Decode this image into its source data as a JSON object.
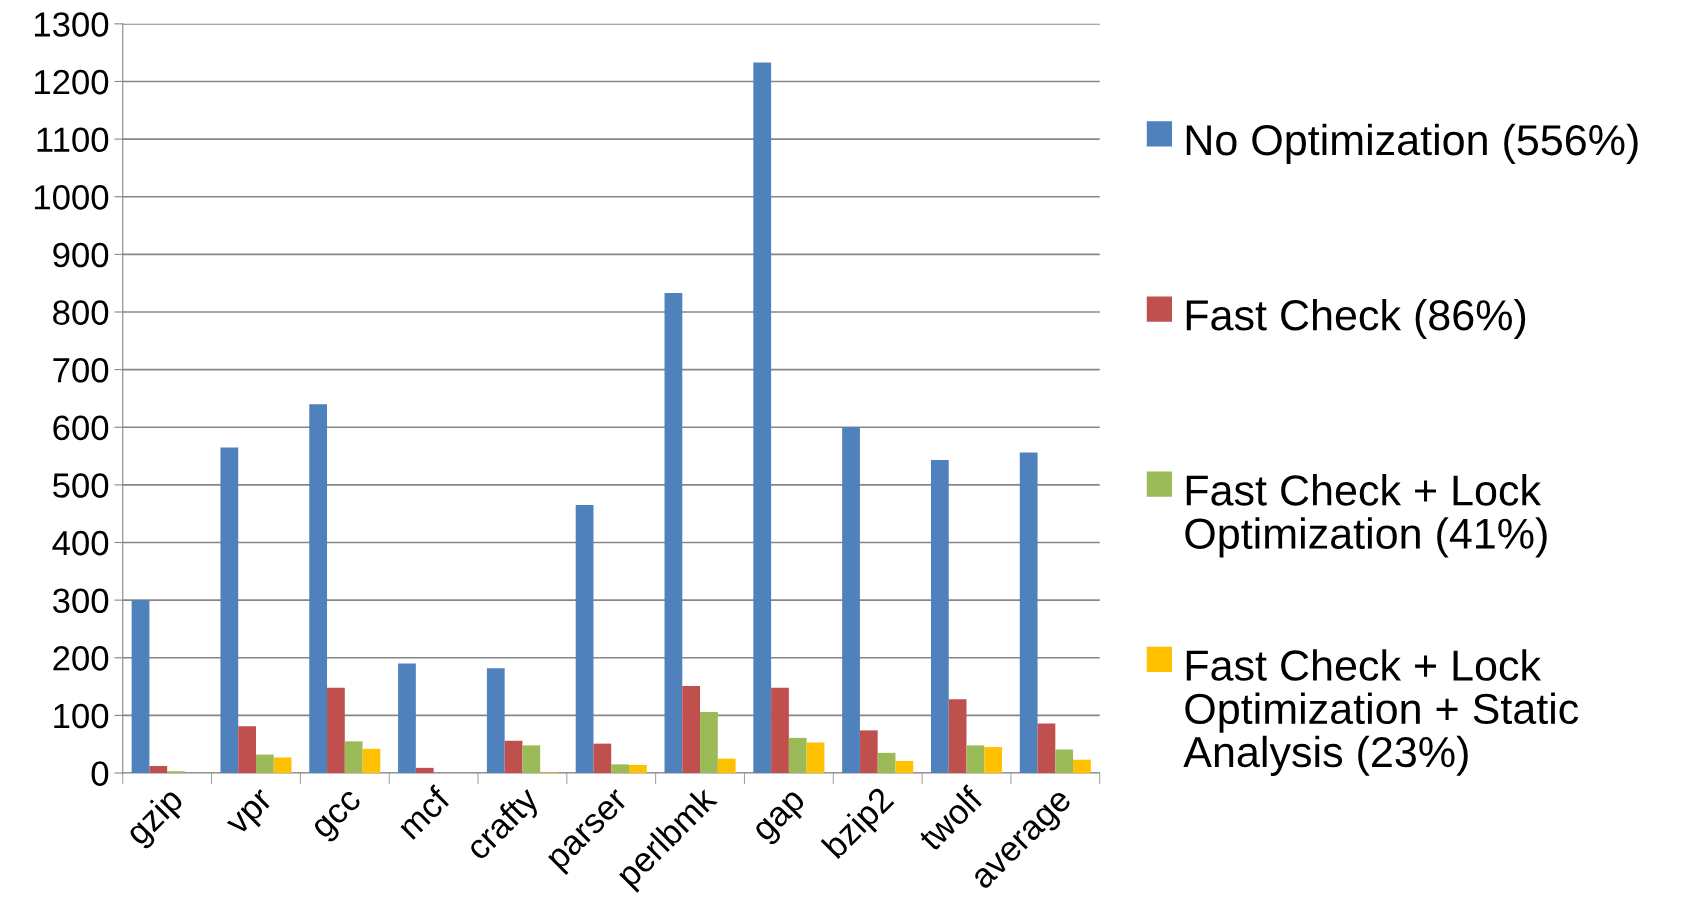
{
  "chart_data": {
    "type": "bar",
    "categories": [
      "gzip",
      "vpr",
      "gcc",
      "mcf",
      "crafty",
      "parser",
      "perlbmk",
      "gap",
      "bzip2",
      "twolf",
      "average"
    ],
    "series": [
      {
        "name": "No Optimization (556%)",
        "color": "#4f81bd",
        "values": [
          300,
          565,
          640,
          190,
          182,
          465,
          833,
          1233,
          600,
          543,
          556
        ]
      },
      {
        "name": "Fast Check (86%)",
        "color": "#c0504d",
        "values": [
          12,
          81,
          148,
          9,
          56,
          51,
          151,
          148,
          74,
          128,
          86
        ]
      },
      {
        "name": "Fast Check + Lock Optimization (41%)",
        "color": "#9bbb59",
        "values": [
          3,
          32,
          55,
          null,
          48,
          15,
          106,
          61,
          35,
          48,
          41
        ]
      },
      {
        "name": "Fast Check + Lock Optimization + Static Analysis (23%)",
        "color": "#ffc000",
        "values": [
          0,
          27,
          42,
          0,
          1,
          14,
          25,
          53,
          21,
          45,
          23
        ]
      }
    ],
    "ylim": [
      0,
      1300
    ],
    "yticks": [
      0,
      100,
      200,
      300,
      400,
      500,
      600,
      700,
      800,
      900,
      1000,
      1100,
      1200,
      1300
    ],
    "grid": "y",
    "legend": "right"
  }
}
